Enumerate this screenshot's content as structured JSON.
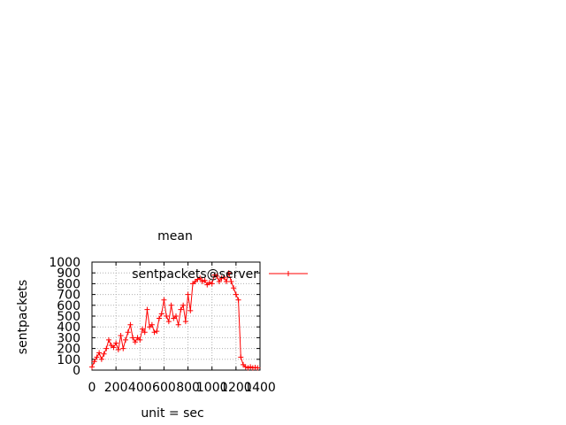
{
  "chart_data": {
    "type": "line",
    "title": "mean",
    "xlabel": "unit = sec",
    "ylabel": "sentpackets",
    "xlim": [
      0,
      1400
    ],
    "ylim": [
      0,
      1000
    ],
    "x_ticks": [
      "0",
      "200",
      "400",
      "600",
      "800",
      "1000",
      "1200",
      "1400"
    ],
    "y_ticks": [
      "0",
      "100",
      "200",
      "300",
      "400",
      "500",
      "600",
      "700",
      "800",
      "900",
      "1000"
    ],
    "grid": true,
    "legend_position": "top-right",
    "line_color": "#ff0000",
    "series": [
      {
        "name": "sentpackets@server",
        "x": [
          0,
          20,
          40,
          60,
          80,
          100,
          120,
          140,
          160,
          180,
          200,
          220,
          240,
          260,
          280,
          300,
          320,
          340,
          360,
          380,
          400,
          420,
          440,
          460,
          480,
          500,
          520,
          540,
          560,
          580,
          600,
          620,
          640,
          660,
          680,
          700,
          720,
          740,
          760,
          780,
          800,
          820,
          840,
          860,
          880,
          900,
          920,
          940,
          960,
          980,
          1000,
          1020,
          1040,
          1060,
          1080,
          1100,
          1120,
          1140,
          1160,
          1180,
          1200,
          1220,
          1240,
          1260,
          1280,
          1300,
          1320,
          1340,
          1360,
          1380
        ],
        "values": [
          30,
          80,
          120,
          160,
          100,
          150,
          200,
          280,
          230,
          210,
          250,
          190,
          320,
          200,
          280,
          350,
          420,
          300,
          260,
          300,
          280,
          380,
          350,
          560,
          400,
          420,
          350,
          360,
          480,
          520,
          650,
          500,
          450,
          600,
          480,
          500,
          420,
          560,
          600,
          450,
          700,
          550,
          800,
          820,
          840,
          850,
          820,
          830,
          790,
          810,
          800,
          880,
          870,
          820,
          850,
          860,
          820,
          900,
          820,
          760,
          700,
          650,
          120,
          50,
          30,
          20,
          30,
          20,
          25,
          20
        ]
      }
    ]
  }
}
